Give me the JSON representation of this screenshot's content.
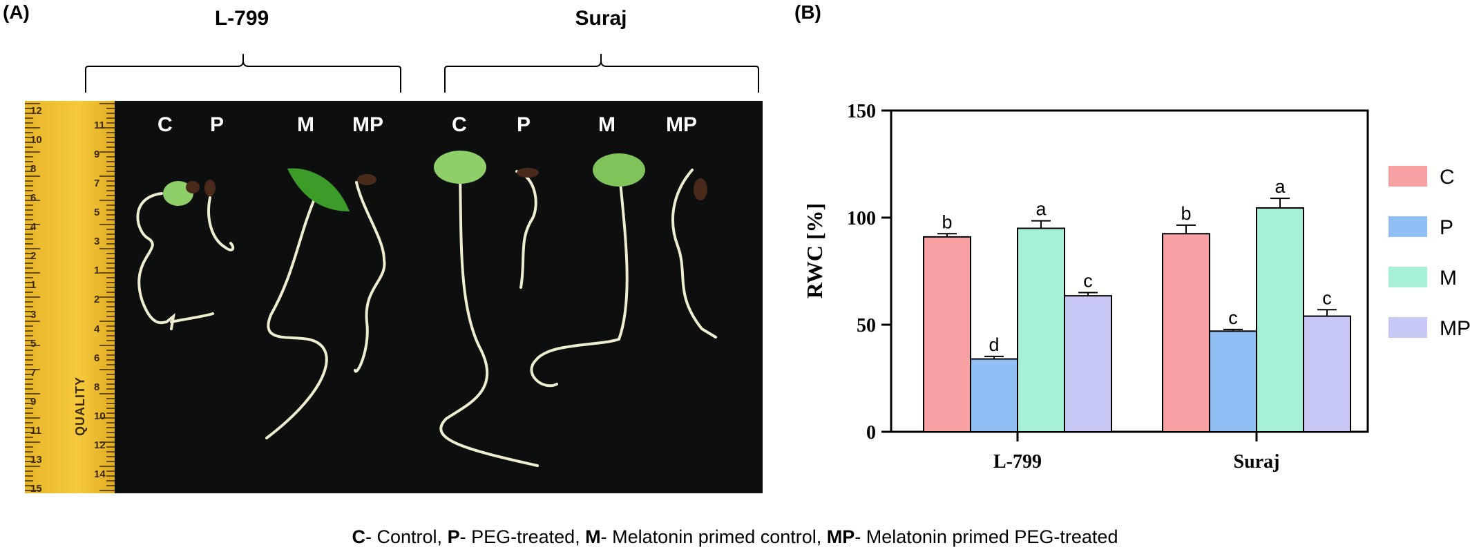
{
  "panel_a": {
    "label": "(A)",
    "groups": [
      {
        "name": "L-799",
        "seedlings": [
          "C",
          "P",
          "M",
          "MP"
        ]
      },
      {
        "name": "Suraj",
        "seedlings": [
          "C",
          "P",
          "M",
          "MP"
        ]
      }
    ],
    "ruler": {
      "brand_text": "QUALITY",
      "numbers": [
        "12",
        "11",
        "10",
        "9",
        "8",
        "7",
        "6",
        "5",
        "4",
        "3",
        "2",
        "1",
        "1",
        "2",
        "3",
        "4",
        "5",
        "6",
        "7",
        "8",
        "9",
        "10",
        "11",
        "12",
        "13",
        "14",
        "15"
      ]
    }
  },
  "panel_b": {
    "label": "(B)"
  },
  "chart_data": {
    "type": "bar",
    "categories": [
      "L-799",
      "Suraj"
    ],
    "ylabel": "RWC [%]",
    "xlabel": "",
    "ylim": [
      0,
      150
    ],
    "yticks": [
      0,
      50,
      100,
      150
    ],
    "series": [
      {
        "name": "C",
        "color": "#f7a1a3",
        "values": [
          91,
          92.5
        ],
        "errors": [
          1.5,
          4
        ],
        "letters": [
          "b",
          "b"
        ]
      },
      {
        "name": "P",
        "color": "#8fbff5",
        "values": [
          34,
          47
        ],
        "errors": [
          1.2,
          0.8
        ],
        "letters": [
          "d",
          "c"
        ]
      },
      {
        "name": "M",
        "color": "#a6f1d6",
        "values": [
          95,
          104.5
        ],
        "errors": [
          3.5,
          4.5
        ],
        "letters": [
          "a",
          "a"
        ]
      },
      {
        "name": "MP",
        "color": "#c8c8f6",
        "values": [
          63.5,
          54
        ],
        "errors": [
          1.5,
          3
        ],
        "letters": [
          "c",
          "c"
        ]
      }
    ],
    "legend_position": "right"
  },
  "caption": [
    {
      "bold": "C",
      "text": "- Control, "
    },
    {
      "bold": "P",
      "text": "- PEG-treated, "
    },
    {
      "bold": "M",
      "text": "- Melatonin primed control, "
    },
    {
      "bold": "MP",
      "text": "- Melatonin primed PEG-treated"
    }
  ]
}
